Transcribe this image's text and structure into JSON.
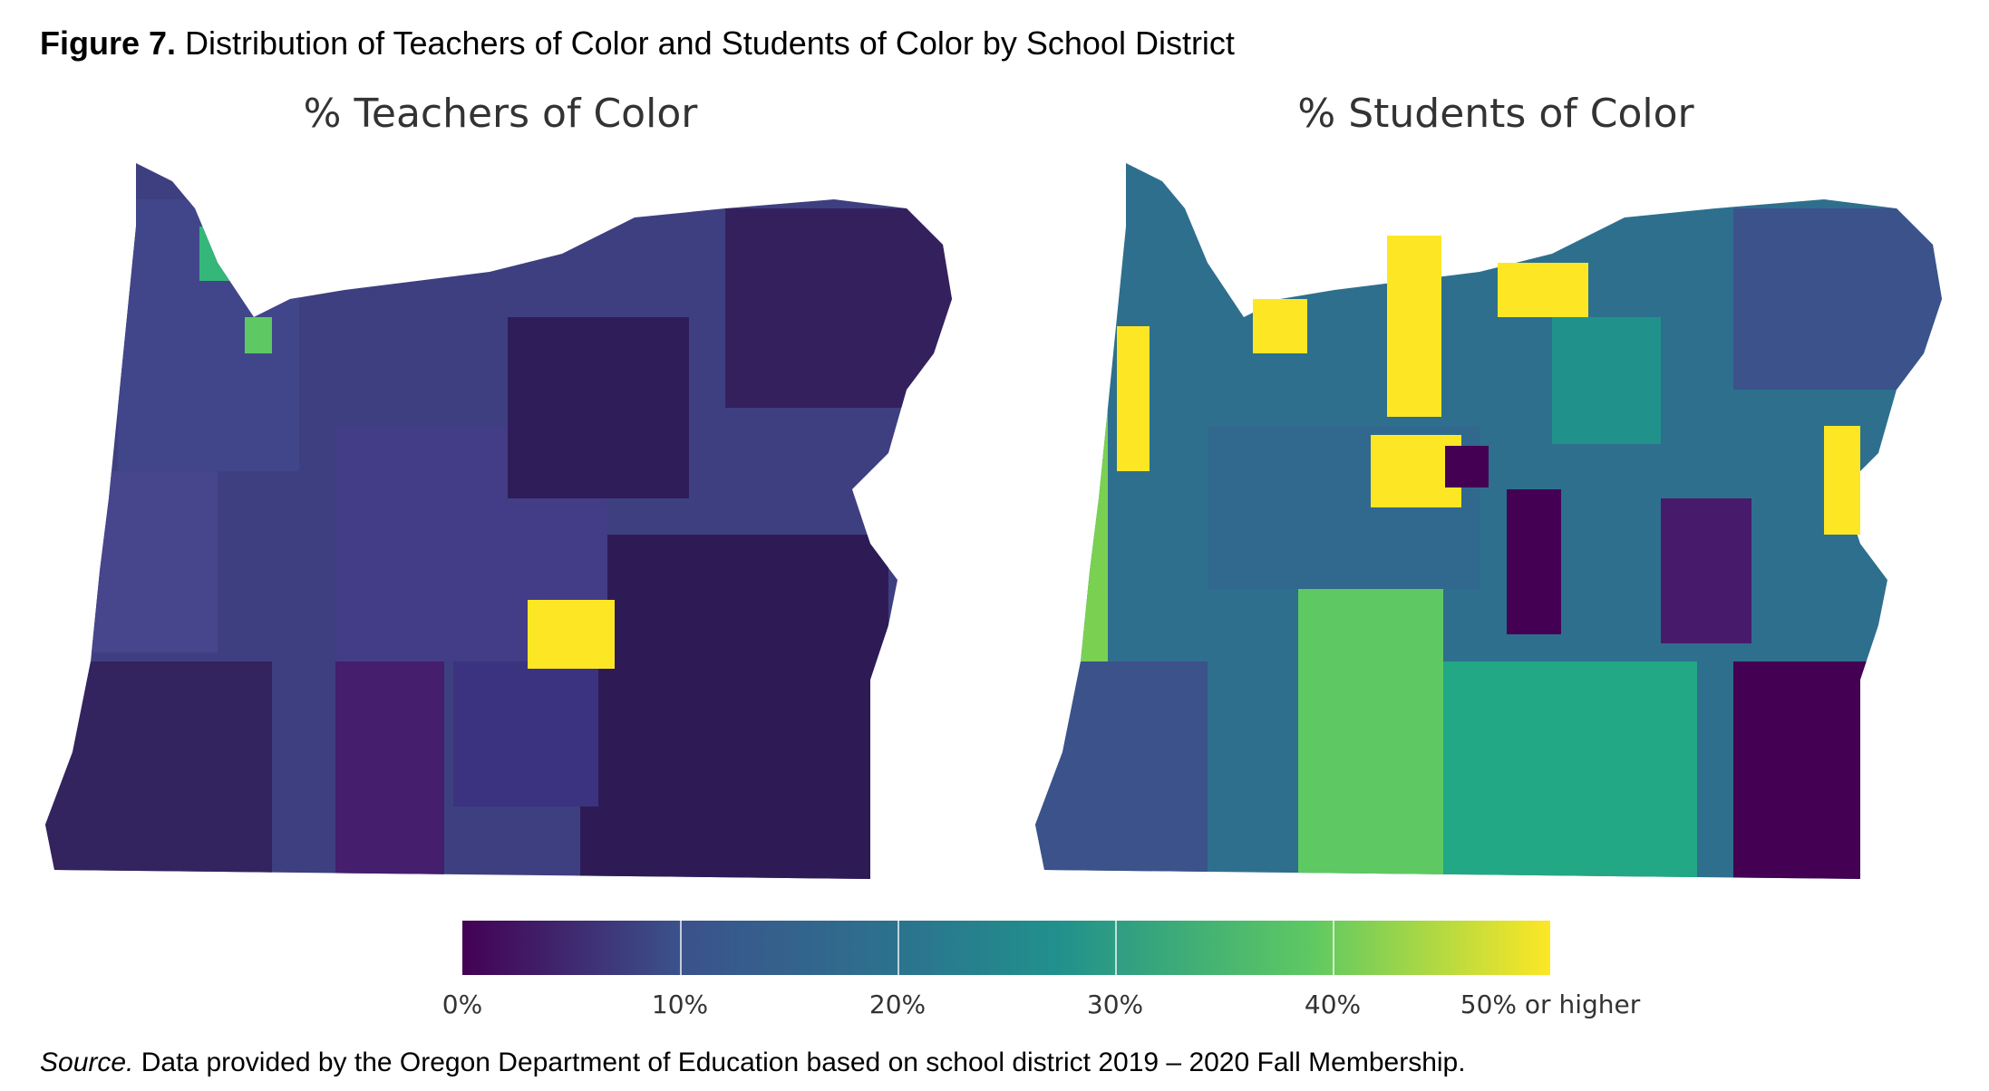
{
  "figure": {
    "label": "Figure 7.",
    "title": "Distribution of Teachers of Color and Students of Color by School District"
  },
  "maps": [
    {
      "title": "% Teachers of Color",
      "base_color": "#3e2a70",
      "highlights": [
        {
          "name": "south-central-district",
          "value_label": "50% or higher",
          "color": "#fde725"
        },
        {
          "name": "northwest-district-a",
          "color": "#35b779"
        },
        {
          "name": "northwest-district-b",
          "color": "#5ec962"
        }
      ]
    },
    {
      "title": "% Students of Color",
      "base_color": "#2c728e",
      "highlights": [
        {
          "name": "north-central-districts",
          "value_label": "50% or higher",
          "color": "#fde725"
        },
        {
          "name": "south-central-large-districts",
          "color": "#5ec962"
        },
        {
          "name": "southeast-districts",
          "color": "#440154"
        }
      ]
    }
  ],
  "legend": {
    "colors": [
      "#440154",
      "#3b528b",
      "#2c728e",
      "#21918c",
      "#5ec962",
      "#fde725"
    ],
    "ticks": [
      "0%",
      "10%",
      "20%",
      "30%",
      "40%",
      "50% or higher"
    ]
  },
  "source": {
    "label": "Source.",
    "text": "Data provided by the Oregon Department of Education based on school district 2019 – 2020 Fall Membership."
  }
}
